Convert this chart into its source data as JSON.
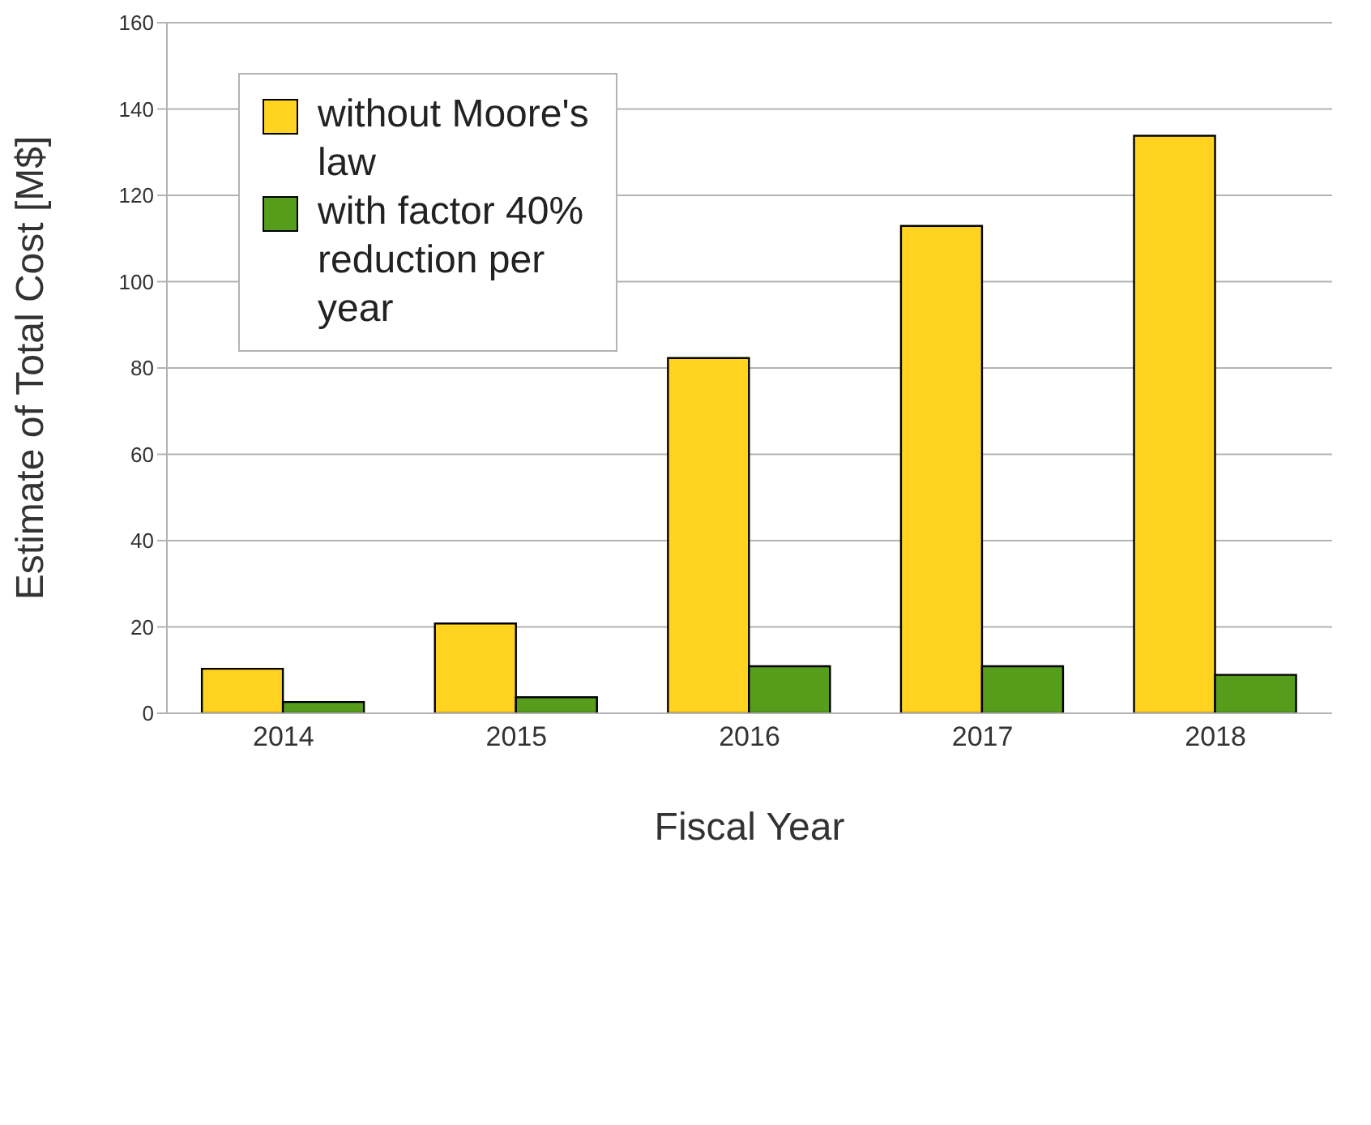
{
  "chart_data": {
    "type": "bar",
    "xlabel": "Fiscal Year",
    "ylabel": "Estimate of Total Cost [M$]",
    "categories": [
      "2014",
      "2015",
      "2016",
      "2017",
      "2018"
    ],
    "series": [
      {
        "name": "without Moore's law",
        "color": "#ffd320",
        "values": [
          10.3,
          20.8,
          82.3,
          112.9,
          133.8
        ]
      },
      {
        "name": "with factor 40% reduction per year",
        "color": "#579d1c",
        "values": [
          2.6,
          3.7,
          10.9,
          10.9,
          8.9
        ]
      }
    ],
    "ylim": [
      0,
      160
    ],
    "yticks": [
      0,
      20,
      40,
      60,
      80,
      100,
      120,
      140,
      160
    ],
    "grid": "y",
    "legend": "top left"
  }
}
